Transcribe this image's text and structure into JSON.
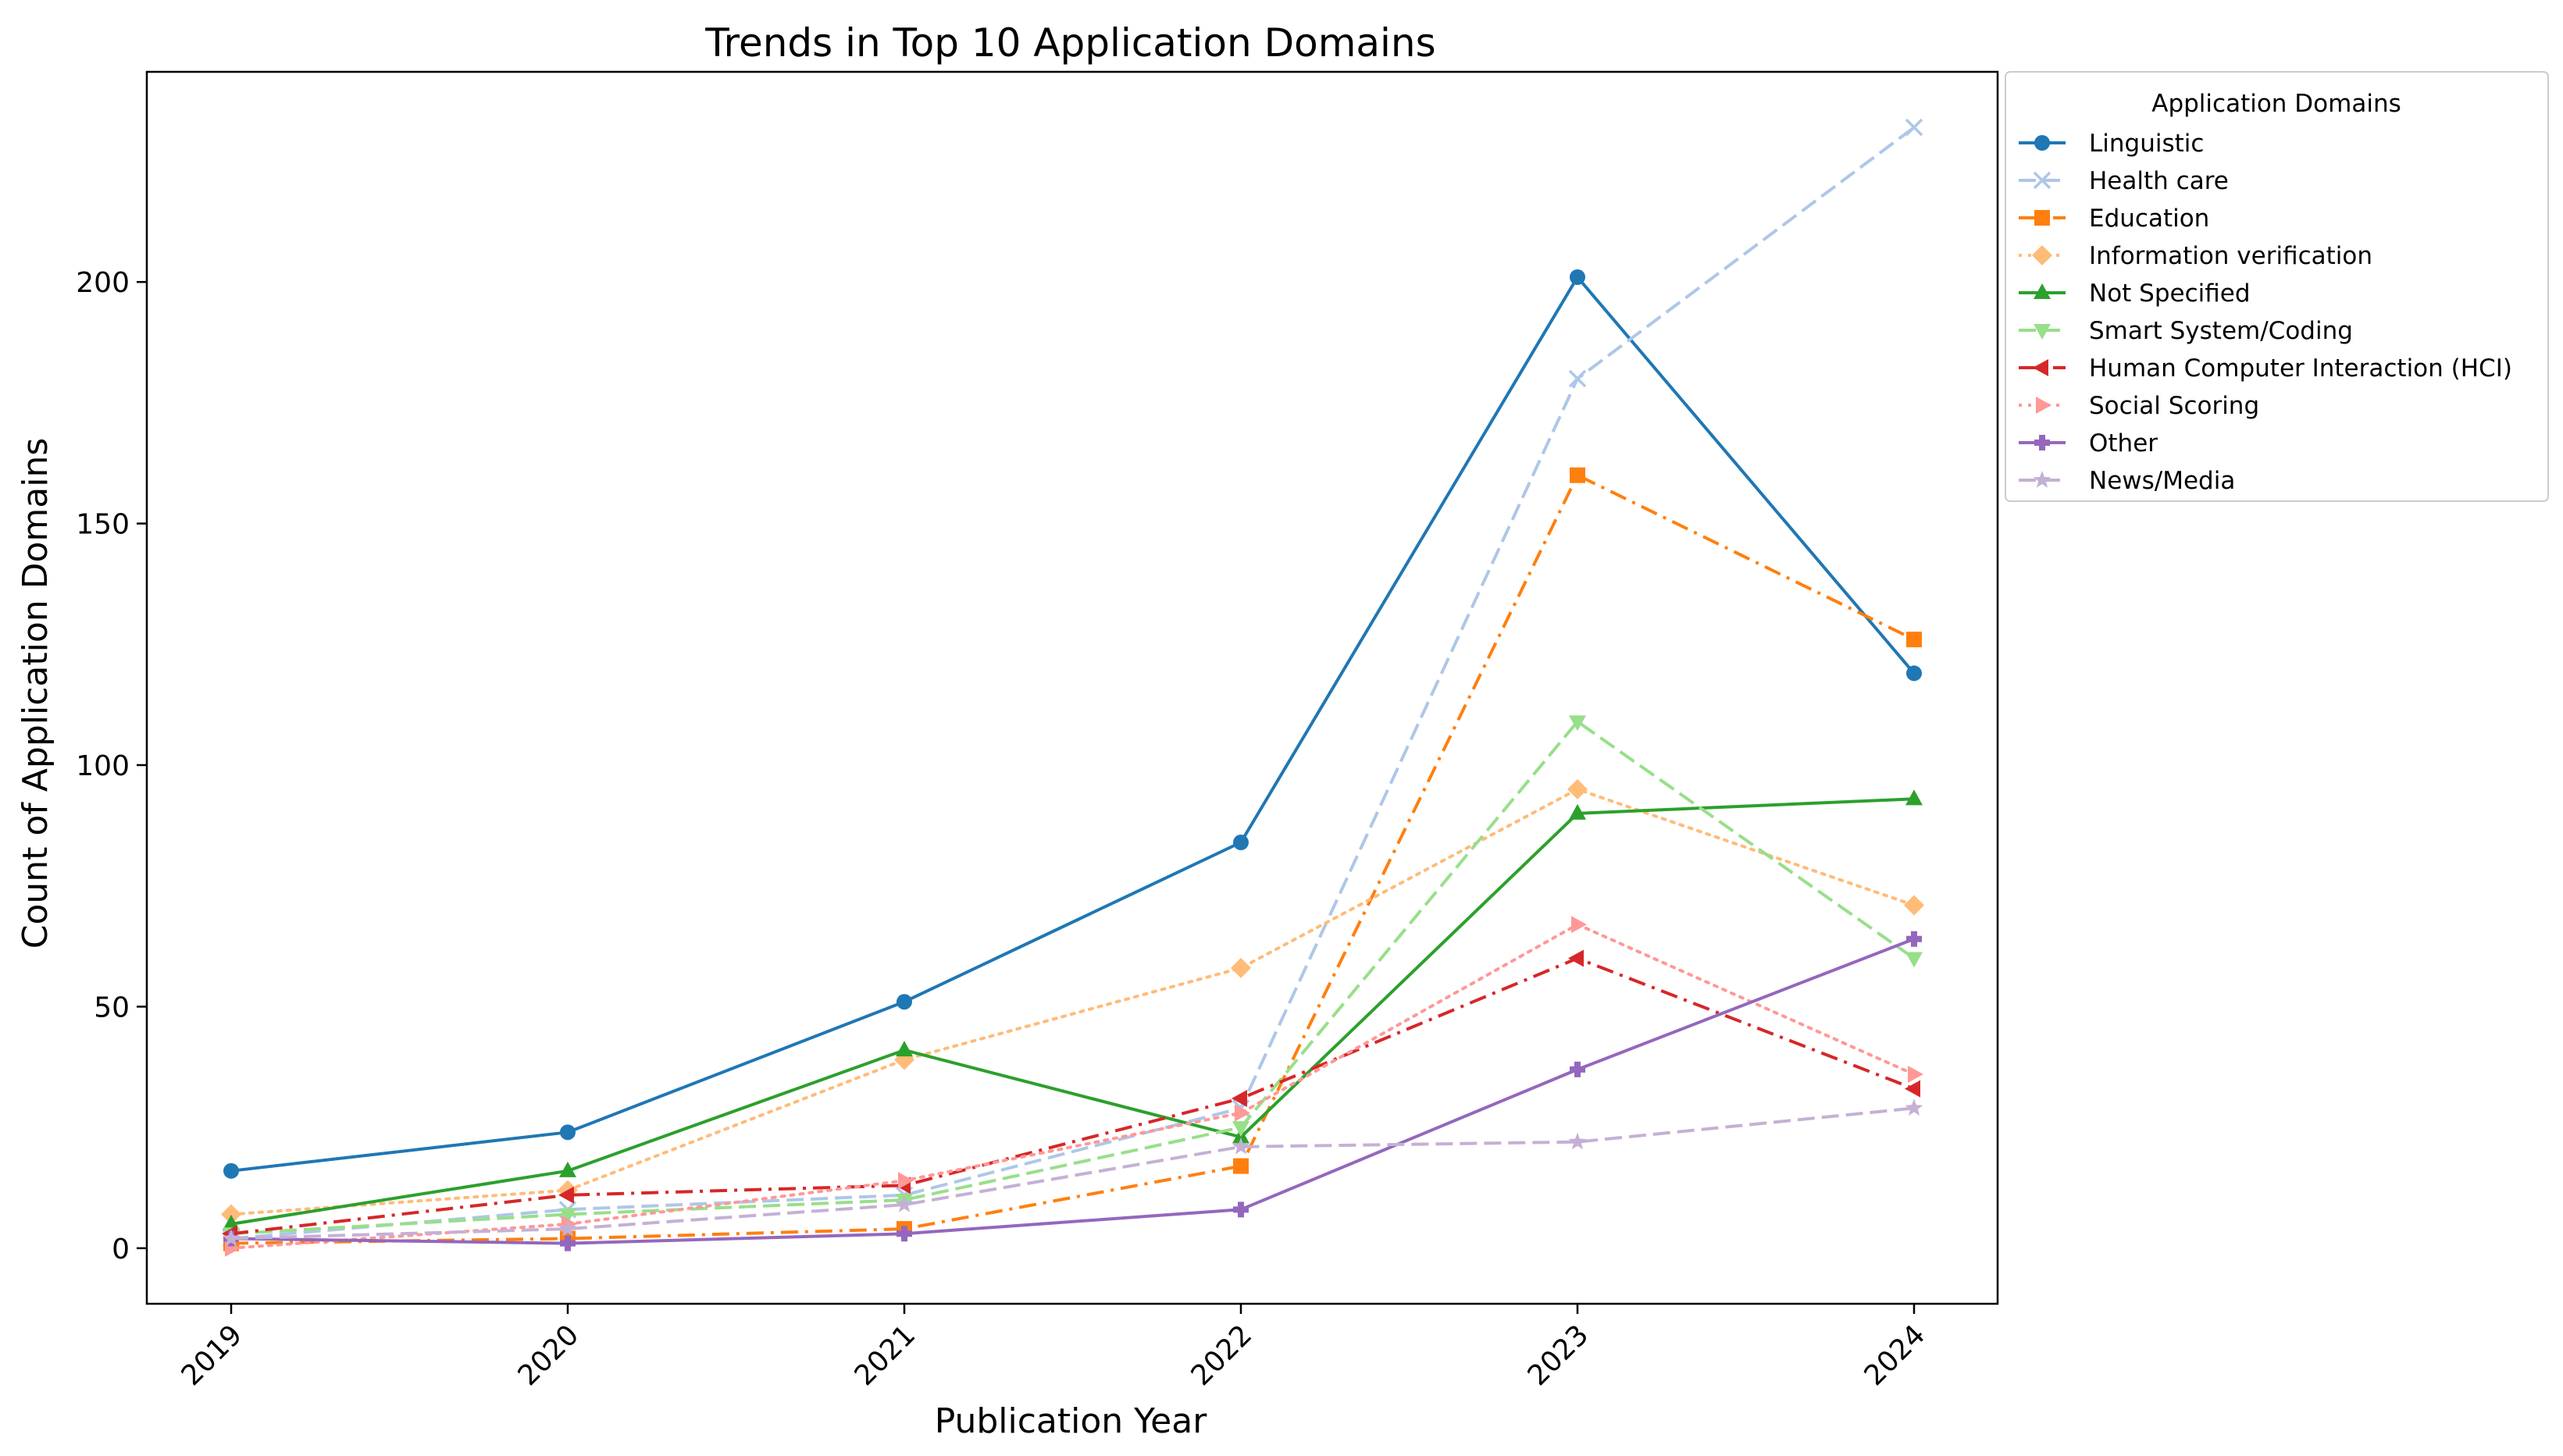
{
  "chart_data": {
    "type": "line",
    "title": "Trends in Top 10 Application Domains",
    "xlabel": "Publication Year",
    "ylabel": "Count of Application Domains",
    "x": [
      "2019",
      "2020",
      "2021",
      "2022",
      "2023",
      "2024"
    ],
    "ylim": [
      -11.5,
      243.5
    ],
    "yticks": [
      0,
      50,
      100,
      150,
      200
    ],
    "grid": false,
    "legend": {
      "title": "Application Domains",
      "placement": "outside-right-top"
    },
    "series": [
      {
        "name": "Linguistic",
        "values": [
          16,
          24,
          51,
          84,
          201,
          119
        ],
        "color": "#1f77b4",
        "dash": "solid",
        "marker": "circle"
      },
      {
        "name": "Health care",
        "values": [
          2,
          8,
          11,
          29,
          180,
          232
        ],
        "color": "#aec7e8",
        "dash": "dashed",
        "marker": "x"
      },
      {
        "name": "Education",
        "values": [
          1,
          2,
          4,
          17,
          160,
          126
        ],
        "color": "#ff7f0e",
        "dash": "dashdot",
        "marker": "square"
      },
      {
        "name": "Information verification",
        "values": [
          7,
          12,
          39,
          58,
          95,
          71
        ],
        "color": "#ffbb78",
        "dash": "dotted",
        "marker": "diamond"
      },
      {
        "name": "Not Specified",
        "values": [
          5,
          16,
          41,
          23,
          90,
          93
        ],
        "color": "#2ca02c",
        "dash": "solid",
        "marker": "triangle-up"
      },
      {
        "name": "Smart System/Coding",
        "values": [
          3,
          7,
          10,
          25,
          109,
          60
        ],
        "color": "#98df8a",
        "dash": "dashed",
        "marker": "triangle-down"
      },
      {
        "name": "Human Computer Interaction (HCI)",
        "values": [
          3,
          11,
          13,
          31,
          60,
          33
        ],
        "color": "#d62728",
        "dash": "dashdot",
        "marker": "triangle-left"
      },
      {
        "name": "Social Scoring",
        "values": [
          0,
          5,
          14,
          28,
          67,
          36
        ],
        "color": "#ff9896",
        "dash": "dotted",
        "marker": "triangle-right"
      },
      {
        "name": "Other",
        "values": [
          2,
          1,
          3,
          8,
          37,
          64
        ],
        "color": "#9467bd",
        "dash": "solid",
        "marker": "plus"
      },
      {
        "name": "News/Media",
        "values": [
          2,
          4,
          9,
          21,
          22,
          29
        ],
        "color": "#c5b0d5",
        "dash": "dashed",
        "marker": "star"
      }
    ]
  }
}
